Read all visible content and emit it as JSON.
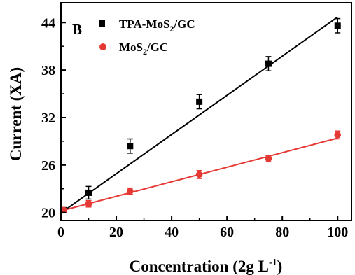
{
  "chart_data": {
    "type": "scatter",
    "panel_label": "B",
    "xlabel": "Concentration (2g L",
    "xlabel_sup": "-1",
    "xlabel_close": ")",
    "ylabel": "Current (XA)",
    "xlim": [
      0,
      105
    ],
    "ylim": [
      19,
      46.5
    ],
    "x_ticks": [
      0,
      20,
      40,
      60,
      80,
      100
    ],
    "x_tick_labels": [
      "0",
      "20",
      "40",
      "60",
      "80",
      "100"
    ],
    "y_ticks": [
      20,
      26,
      32,
      38,
      44
    ],
    "y_tick_labels": [
      "20",
      "26",
      "32",
      "38",
      "44"
    ],
    "grid": false,
    "legend_position": "top-left",
    "series": [
      {
        "name": "TPA-MoS2/GC",
        "legend_main": "TPA-MoS",
        "legend_sub": "2",
        "legend_tail": "/GC",
        "marker": "square",
        "color": "#000000",
        "x": [
          1,
          10,
          25,
          50,
          75,
          100
        ],
        "y": [
          20.3,
          22.5,
          28.4,
          34.0,
          38.8,
          43.6
        ],
        "error": [
          0.3,
          0.8,
          0.9,
          0.9,
          0.9,
          0.9
        ],
        "fit": {
          "x": [
            1,
            100
          ],
          "y": [
            20.2,
            44.7
          ]
        }
      },
      {
        "name": "MoS2/GC",
        "legend_main": "MoS",
        "legend_sub": "2",
        "legend_tail": "/GC",
        "marker": "circle",
        "color": "#e53935",
        "x": [
          1,
          10,
          25,
          50,
          75,
          100
        ],
        "y": [
          20.3,
          21.1,
          22.7,
          24.8,
          26.8,
          29.8
        ],
        "error": [
          0.2,
          0.4,
          0.4,
          0.5,
          0.4,
          0.5
        ],
        "fit": {
          "x": [
            1,
            100
          ],
          "y": [
            20.3,
            29.4
          ]
        }
      }
    ]
  }
}
